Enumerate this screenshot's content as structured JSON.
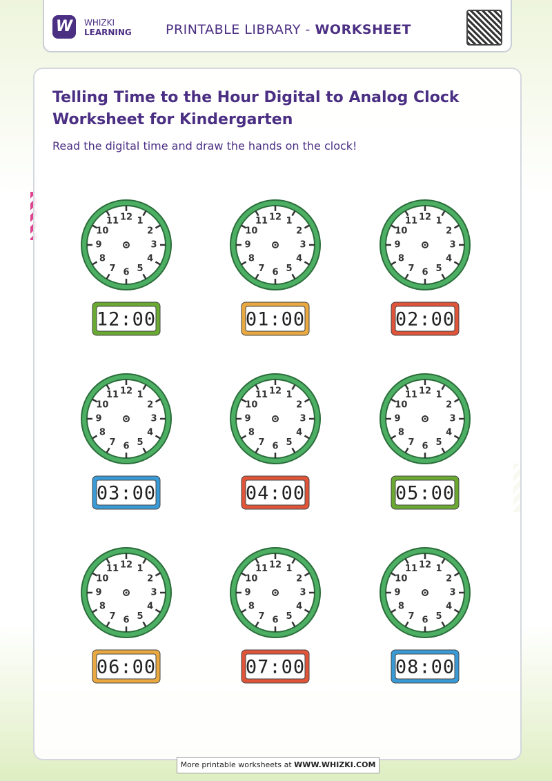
{
  "header": {
    "brand": "WHIZKI",
    "brand_sub": "LEARNING",
    "library": "PRINTABLE LIBRARY - ",
    "kind": "WORKSHEET"
  },
  "title": "Telling Time to the Hour Digital to Analog Clock Worksheet for Kindergarten",
  "subtitle": "Read the digital time and draw the hands on the clock!",
  "clock_face": {
    "numbers": [
      "12",
      "1",
      "2",
      "3",
      "4",
      "5",
      "6",
      "7",
      "8",
      "9",
      "10",
      "11"
    ]
  },
  "clocks": [
    {
      "time": "12:00",
      "color": "#6aaa32"
    },
    {
      "time": "01:00",
      "color": "#e9a940"
    },
    {
      "time": "02:00",
      "color": "#e0553a"
    },
    {
      "time": "03:00",
      "color": "#3a9ad6"
    },
    {
      "time": "04:00",
      "color": "#e0553a"
    },
    {
      "time": "05:00",
      "color": "#6aaa32"
    },
    {
      "time": "06:00",
      "color": "#e9a940"
    },
    {
      "time": "07:00",
      "color": "#e0553a"
    },
    {
      "time": "08:00",
      "color": "#3a9ad6"
    }
  ],
  "footer": {
    "text": "More printable worksheets at ",
    "link": "WWW.WHIZKI.COM"
  }
}
